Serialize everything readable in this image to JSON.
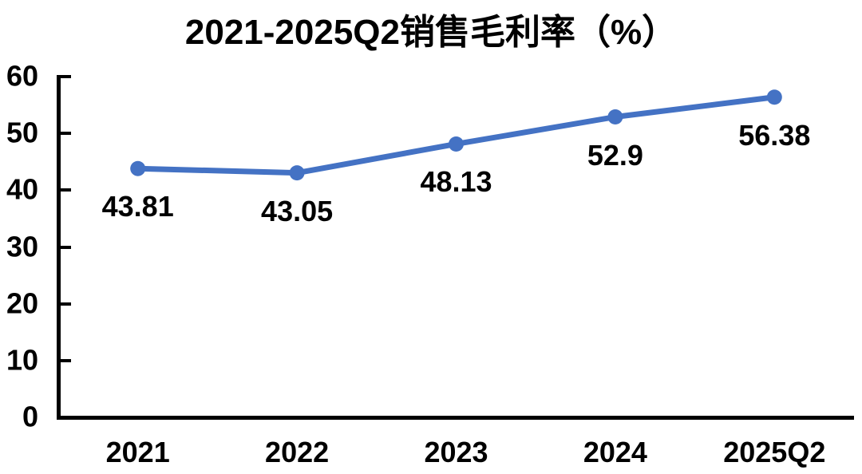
{
  "chart_data": {
    "type": "line",
    "title": "2021-2025Q2销售毛利率（%）",
    "categories": [
      "2021",
      "2022",
      "2023",
      "2024",
      "2025Q2"
    ],
    "values": [
      43.81,
      43.05,
      48.13,
      52.9,
      56.38
    ],
    "data_labels": [
      "43.81",
      "43.05",
      "48.13",
      "52.9",
      "56.38"
    ],
    "data_label_position": "below",
    "yticks": [
      0,
      10,
      20,
      30,
      40,
      50,
      60
    ],
    "ylim": [
      0,
      60
    ],
    "xlabel": "",
    "ylabel": "",
    "grid": "off",
    "legend": "none",
    "line_color": "#4472C4",
    "marker": "circle",
    "axis_color": "#000000",
    "text_color": "#000000"
  }
}
